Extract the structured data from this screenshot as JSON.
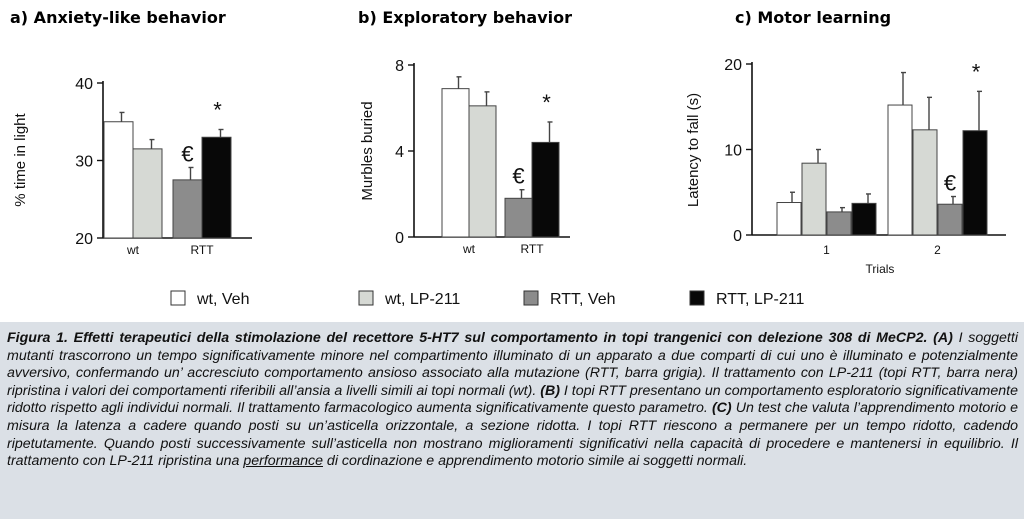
{
  "colors": {
    "wt_veh": "#ffffff",
    "wt_lp": "#d6d9d4",
    "rtt_veh": "#8c8c8c",
    "rtt_lp": "#080808",
    "caption_bg": "#dbe0e6"
  },
  "legend": [
    {
      "label": "wt, Veh",
      "color_key": "wt_veh"
    },
    {
      "label": "wt, LP-211",
      "color_key": "wt_lp"
    },
    {
      "label": "RTT, Veh",
      "color_key": "rtt_veh"
    },
    {
      "label": "RTT, LP-211",
      "color_key": "rtt_lp"
    }
  ],
  "chart_data": [
    {
      "type": "bar",
      "title": "a)  Anxiety-like behavior",
      "ylabel": "% time in light",
      "xlabel": "",
      "ylim": [
        20,
        40
      ],
      "yticks": [
        20,
        30,
        40
      ],
      "groups": [
        {
          "label": "wt",
          "bars": [
            {
              "series": "wt, Veh",
              "value": 35,
              "err": 1.2
            },
            {
              "series": "wt, LP-211",
              "value": 31.5,
              "err": 1.2
            }
          ]
        },
        {
          "label": "RTT",
          "bars": [
            {
              "series": "RTT, Veh",
              "value": 27.5,
              "err": 1.6,
              "mark": "€"
            },
            {
              "series": "RTT, LP-211",
              "value": 33,
              "err": 1.0,
              "mark": "*"
            }
          ]
        }
      ]
    },
    {
      "type": "bar",
      "title": "b)  Exploratory behavior",
      "ylabel": "Murbles buried",
      "xlabel": "",
      "ylim": [
        0,
        8
      ],
      "yticks": [
        0,
        4,
        8
      ],
      "groups": [
        {
          "label": "wt",
          "bars": [
            {
              "series": "wt, Veh",
              "value": 6.9,
              "err": 0.55
            },
            {
              "series": "wt, LP-211",
              "value": 6.1,
              "err": 0.65
            }
          ]
        },
        {
          "label": "RTT",
          "bars": [
            {
              "series": "RTT, Veh",
              "value": 1.8,
              "err": 0.4,
              "mark": "€"
            },
            {
              "series": "RTT, LP-211",
              "value": 4.4,
              "err": 0.95,
              "mark": "*"
            }
          ]
        }
      ]
    },
    {
      "type": "bar",
      "title": "c)  Motor learning",
      "ylabel": "Latency to fall (s)",
      "xlabel": "Trials",
      "ylim": [
        0,
        20
      ],
      "yticks": [
        0,
        10,
        20
      ],
      "groups": [
        {
          "label": "1",
          "bars": [
            {
              "series": "wt, Veh",
              "value": 3.8,
              "err": 1.2
            },
            {
              "series": "wt, LP-211",
              "value": 8.4,
              "err": 1.6
            },
            {
              "series": "RTT, Veh",
              "value": 2.7,
              "err": 0.5
            },
            {
              "series": "RTT, LP-211",
              "value": 3.7,
              "err": 1.1
            }
          ]
        },
        {
          "label": "2",
          "bars": [
            {
              "series": "wt, Veh",
              "value": 15.2,
              "err": 3.8
            },
            {
              "series": "wt, LP-211",
              "value": 12.3,
              "err": 3.8
            },
            {
              "series": "RTT, Veh",
              "value": 3.6,
              "err": 0.9,
              "mark": "€"
            },
            {
              "series": "RTT, LP-211",
              "value": 12.2,
              "err": 4.6,
              "mark": "*"
            }
          ]
        }
      ]
    }
  ],
  "caption": {
    "title": "Figura 1. Effetti terapeutici della stimolazione del recettore 5-HT7 sul comportamento in topi trangenici con delezione 308 di MeCP2.",
    "a_label": "(A)",
    "a_text": " I soggetti mutanti trascorrono un tempo significativamente minore nel compartimento illuminato di un apparato a due compar­ti di cui uno è illuminato e potenzialmente avversivo, confermando un’ accresciuto comportamento ansioso associato alla mutazione (RTT, barra grigia). Il trattamento con LP-211 (topi RTT, barra nera) ripristina i valori dei comportamenti riferibili all’ansia a livelli simili ai topi normali (wt). ",
    "b_label": "(B)",
    "b_text": " I topi RTT presentano un comportamento esploratorio significativamente ridotto rispetto agli individui normali. Il trattamento farmacologico aumenta significativamente questo parametro. ",
    "c_label": "(C)",
    "c_text": " Un test che valuta l’apprendimento motorio e misura la latenza a cadere quando posti su un’asticella orizzontale, a sezione ridotta. I topi RTT riescono a permanere per un tempo ridotto, cadendo ripetutamente. Quando posti successivamente sull’asticella non mostrano miglioramenti significativi nella capacità di proce­dere e mantenersi in equilibrio. Il trattamento con LP-211 ripristina una ",
    "c_underlined": "performance",
    "c_tail": " di cordinazione e apprendimento motorio simile ai soggetti normali."
  }
}
